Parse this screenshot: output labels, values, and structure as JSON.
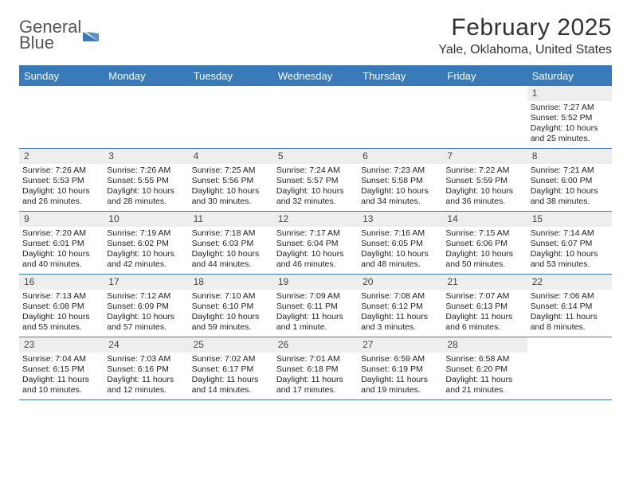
{
  "logo": {
    "word1": "General",
    "word2": "Blue"
  },
  "header": {
    "month_title": "February 2025",
    "location": "Yale, Oklahoma, United States"
  },
  "colors": {
    "brand": "#3a7ab8",
    "header_bg": "#3a7ab8",
    "header_text": "#ffffff",
    "daynum_bg": "#eeeeee",
    "text": "#222222"
  },
  "day_names": [
    "Sunday",
    "Monday",
    "Tuesday",
    "Wednesday",
    "Thursday",
    "Friday",
    "Saturday"
  ],
  "weeks": [
    [
      {
        "n": "",
        "lines": []
      },
      {
        "n": "",
        "lines": []
      },
      {
        "n": "",
        "lines": []
      },
      {
        "n": "",
        "lines": []
      },
      {
        "n": "",
        "lines": []
      },
      {
        "n": "",
        "lines": []
      },
      {
        "n": "1",
        "lines": [
          "Sunrise: 7:27 AM",
          "Sunset: 5:52 PM",
          "Daylight: 10 hours",
          "and 25 minutes."
        ]
      }
    ],
    [
      {
        "n": "2",
        "lines": [
          "Sunrise: 7:26 AM",
          "Sunset: 5:53 PM",
          "Daylight: 10 hours",
          "and 26 minutes."
        ]
      },
      {
        "n": "3",
        "lines": [
          "Sunrise: 7:26 AM",
          "Sunset: 5:55 PM",
          "Daylight: 10 hours",
          "and 28 minutes."
        ]
      },
      {
        "n": "4",
        "lines": [
          "Sunrise: 7:25 AM",
          "Sunset: 5:56 PM",
          "Daylight: 10 hours",
          "and 30 minutes."
        ]
      },
      {
        "n": "5",
        "lines": [
          "Sunrise: 7:24 AM",
          "Sunset: 5:57 PM",
          "Daylight: 10 hours",
          "and 32 minutes."
        ]
      },
      {
        "n": "6",
        "lines": [
          "Sunrise: 7:23 AM",
          "Sunset: 5:58 PM",
          "Daylight: 10 hours",
          "and 34 minutes."
        ]
      },
      {
        "n": "7",
        "lines": [
          "Sunrise: 7:22 AM",
          "Sunset: 5:59 PM",
          "Daylight: 10 hours",
          "and 36 minutes."
        ]
      },
      {
        "n": "8",
        "lines": [
          "Sunrise: 7:21 AM",
          "Sunset: 6:00 PM",
          "Daylight: 10 hours",
          "and 38 minutes."
        ]
      }
    ],
    [
      {
        "n": "9",
        "lines": [
          "Sunrise: 7:20 AM",
          "Sunset: 6:01 PM",
          "Daylight: 10 hours",
          "and 40 minutes."
        ]
      },
      {
        "n": "10",
        "lines": [
          "Sunrise: 7:19 AM",
          "Sunset: 6:02 PM",
          "Daylight: 10 hours",
          "and 42 minutes."
        ]
      },
      {
        "n": "11",
        "lines": [
          "Sunrise: 7:18 AM",
          "Sunset: 6:03 PM",
          "Daylight: 10 hours",
          "and 44 minutes."
        ]
      },
      {
        "n": "12",
        "lines": [
          "Sunrise: 7:17 AM",
          "Sunset: 6:04 PM",
          "Daylight: 10 hours",
          "and 46 minutes."
        ]
      },
      {
        "n": "13",
        "lines": [
          "Sunrise: 7:16 AM",
          "Sunset: 6:05 PM",
          "Daylight: 10 hours",
          "and 48 minutes."
        ]
      },
      {
        "n": "14",
        "lines": [
          "Sunrise: 7:15 AM",
          "Sunset: 6:06 PM",
          "Daylight: 10 hours",
          "and 50 minutes."
        ]
      },
      {
        "n": "15",
        "lines": [
          "Sunrise: 7:14 AM",
          "Sunset: 6:07 PM",
          "Daylight: 10 hours",
          "and 53 minutes."
        ]
      }
    ],
    [
      {
        "n": "16",
        "lines": [
          "Sunrise: 7:13 AM",
          "Sunset: 6:08 PM",
          "Daylight: 10 hours",
          "and 55 minutes."
        ]
      },
      {
        "n": "17",
        "lines": [
          "Sunrise: 7:12 AM",
          "Sunset: 6:09 PM",
          "Daylight: 10 hours",
          "and 57 minutes."
        ]
      },
      {
        "n": "18",
        "lines": [
          "Sunrise: 7:10 AM",
          "Sunset: 6:10 PM",
          "Daylight: 10 hours",
          "and 59 minutes."
        ]
      },
      {
        "n": "19",
        "lines": [
          "Sunrise: 7:09 AM",
          "Sunset: 6:11 PM",
          "Daylight: 11 hours",
          "and 1 minute."
        ]
      },
      {
        "n": "20",
        "lines": [
          "Sunrise: 7:08 AM",
          "Sunset: 6:12 PM",
          "Daylight: 11 hours",
          "and 3 minutes."
        ]
      },
      {
        "n": "21",
        "lines": [
          "Sunrise: 7:07 AM",
          "Sunset: 6:13 PM",
          "Daylight: 11 hours",
          "and 6 minutes."
        ]
      },
      {
        "n": "22",
        "lines": [
          "Sunrise: 7:06 AM",
          "Sunset: 6:14 PM",
          "Daylight: 11 hours",
          "and 8 minutes."
        ]
      }
    ],
    [
      {
        "n": "23",
        "lines": [
          "Sunrise: 7:04 AM",
          "Sunset: 6:15 PM",
          "Daylight: 11 hours",
          "and 10 minutes."
        ]
      },
      {
        "n": "24",
        "lines": [
          "Sunrise: 7:03 AM",
          "Sunset: 6:16 PM",
          "Daylight: 11 hours",
          "and 12 minutes."
        ]
      },
      {
        "n": "25",
        "lines": [
          "Sunrise: 7:02 AM",
          "Sunset: 6:17 PM",
          "Daylight: 11 hours",
          "and 14 minutes."
        ]
      },
      {
        "n": "26",
        "lines": [
          "Sunrise: 7:01 AM",
          "Sunset: 6:18 PM",
          "Daylight: 11 hours",
          "and 17 minutes."
        ]
      },
      {
        "n": "27",
        "lines": [
          "Sunrise: 6:59 AM",
          "Sunset: 6:19 PM",
          "Daylight: 11 hours",
          "and 19 minutes."
        ]
      },
      {
        "n": "28",
        "lines": [
          "Sunrise: 6:58 AM",
          "Sunset: 6:20 PM",
          "Daylight: 11 hours",
          "and 21 minutes."
        ]
      },
      {
        "n": "",
        "lines": []
      }
    ]
  ]
}
